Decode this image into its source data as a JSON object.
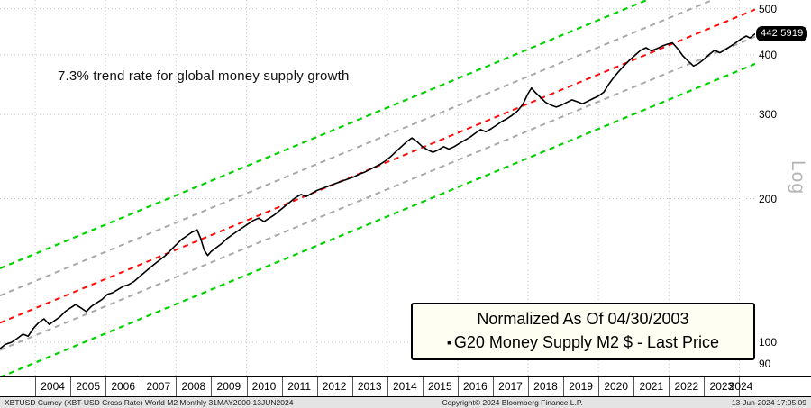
{
  "annotation": "7.3% trend rate for global money supply growth",
  "log_scale_label": "Log",
  "price_badge": "442.5919",
  "legend": {
    "line1": "Normalized As Of 04/30/2003",
    "bullet": "▪",
    "line2": "G20 Money Supply M2 $ - Last Price"
  },
  "footer": {
    "left": "XBTUSD Curncy (XBT-USD Cross Rate) World M2  Monthly 31MAY2000-13JUN2024",
    "center": "Copyright© 2024 Bloomberg Finance L.P.",
    "right": "13-Jun-2024 17:05:09"
  },
  "colors": {
    "price_line": "#000000",
    "trend_center": "#ff0a0a",
    "trend_inner": "#a8a8a8",
    "trend_outer": "#00d200",
    "gridline": "#c9c9c9",
    "badge_bg": "#000000",
    "badge_text": "#ffffff"
  },
  "chart_data": {
    "type": "line",
    "title": "",
    "scale_y": "log",
    "normalized_as_of": "04/30/2003",
    "x_range": [
      2003.0,
      2024.45
    ],
    "ylim": [
      84.8,
      521.2
    ],
    "y_ticks": [
      500,
      400,
      300,
      200,
      100,
      90
    ],
    "h_gridlines": [
      500,
      400,
      300,
      200,
      100
    ],
    "v_gridline_years": [
      2004,
      2006,
      2008,
      2010,
      2012,
      2014,
      2016,
      2018,
      2020,
      2022,
      2024
    ],
    "x_tick_years": [
      2004,
      2005,
      2006,
      2007,
      2008,
      2009,
      2010,
      2011,
      2012,
      2013,
      2014,
      2015,
      2016,
      2017,
      2018,
      2019,
      2020,
      2021,
      2022,
      2023,
      2024
    ],
    "last_price": 442.5919,
    "trend_channel": {
      "annual_growth_pct": 7.3,
      "anchor_year": 2003.4,
      "anchor_value": 113,
      "inner_band_factor": 1.14,
      "outer_band_factor": 1.3,
      "center_color": "#ff0a0a",
      "inner_color": "#a8a8a8",
      "outer_color": "#00d200",
      "dash": "6 5"
    },
    "series": [
      {
        "name": "G20 Money Supply M2 $ - Last Price",
        "color": "#000000",
        "points": [
          [
            2003.0,
            97
          ],
          [
            2003.15,
            99
          ],
          [
            2003.33,
            100
          ],
          [
            2003.5,
            102
          ],
          [
            2003.65,
            104
          ],
          [
            2003.8,
            103
          ],
          [
            2003.95,
            107
          ],
          [
            2004.1,
            110
          ],
          [
            2004.25,
            112
          ],
          [
            2004.4,
            109
          ],
          [
            2004.55,
            111
          ],
          [
            2004.7,
            113
          ],
          [
            2004.85,
            116
          ],
          [
            2005.0,
            118
          ],
          [
            2005.15,
            120
          ],
          [
            2005.3,
            118
          ],
          [
            2005.45,
            116
          ],
          [
            2005.6,
            119
          ],
          [
            2005.75,
            121
          ],
          [
            2005.9,
            123
          ],
          [
            2006.05,
            126
          ],
          [
            2006.2,
            127
          ],
          [
            2006.35,
            129
          ],
          [
            2006.5,
            131
          ],
          [
            2006.65,
            132
          ],
          [
            2006.8,
            134
          ],
          [
            2006.95,
            137
          ],
          [
            2007.1,
            140
          ],
          [
            2007.25,
            143
          ],
          [
            2007.4,
            146
          ],
          [
            2007.55,
            149
          ],
          [
            2007.7,
            152
          ],
          [
            2007.85,
            156
          ],
          [
            2008.0,
            160
          ],
          [
            2008.15,
            164
          ],
          [
            2008.3,
            167
          ],
          [
            2008.45,
            170
          ],
          [
            2008.6,
            172
          ],
          [
            2008.7,
            165
          ],
          [
            2008.8,
            156
          ],
          [
            2008.9,
            152
          ],
          [
            2009.0,
            155
          ],
          [
            2009.15,
            158
          ],
          [
            2009.3,
            161
          ],
          [
            2009.45,
            165
          ],
          [
            2009.6,
            168
          ],
          [
            2009.75,
            171
          ],
          [
            2009.9,
            174
          ],
          [
            2010.05,
            177
          ],
          [
            2010.2,
            180
          ],
          [
            2010.35,
            182
          ],
          [
            2010.5,
            179
          ],
          [
            2010.65,
            182
          ],
          [
            2010.8,
            185
          ],
          [
            2010.95,
            189
          ],
          [
            2011.1,
            193
          ],
          [
            2011.25,
            197
          ],
          [
            2011.4,
            201
          ],
          [
            2011.55,
            204
          ],
          [
            2011.7,
            202
          ],
          [
            2011.85,
            205
          ],
          [
            2012.0,
            208
          ],
          [
            2012.15,
            210
          ],
          [
            2012.3,
            212
          ],
          [
            2012.45,
            214
          ],
          [
            2012.6,
            216
          ],
          [
            2012.75,
            218
          ],
          [
            2012.9,
            220
          ],
          [
            2013.05,
            222
          ],
          [
            2013.2,
            225
          ],
          [
            2013.35,
            227
          ],
          [
            2013.5,
            230
          ],
          [
            2013.65,
            233
          ],
          [
            2013.8,
            236
          ],
          [
            2013.95,
            240
          ],
          [
            2014.1,
            245
          ],
          [
            2014.25,
            251
          ],
          [
            2014.4,
            257
          ],
          [
            2014.55,
            263
          ],
          [
            2014.7,
            268
          ],
          [
            2014.85,
            263
          ],
          [
            2015.0,
            257
          ],
          [
            2015.15,
            253
          ],
          [
            2015.3,
            250
          ],
          [
            2015.45,
            253
          ],
          [
            2015.6,
            257
          ],
          [
            2015.75,
            254
          ],
          [
            2015.9,
            257
          ],
          [
            2016.05,
            261
          ],
          [
            2016.2,
            265
          ],
          [
            2016.35,
            269
          ],
          [
            2016.5,
            274
          ],
          [
            2016.65,
            279
          ],
          [
            2016.8,
            276
          ],
          [
            2016.95,
            280
          ],
          [
            2017.1,
            285
          ],
          [
            2017.25,
            290
          ],
          [
            2017.4,
            294
          ],
          [
            2017.55,
            299
          ],
          [
            2017.7,
            305
          ],
          [
            2017.85,
            315
          ],
          [
            2018.0,
            332
          ],
          [
            2018.1,
            341
          ],
          [
            2018.2,
            334
          ],
          [
            2018.35,
            326
          ],
          [
            2018.5,
            318
          ],
          [
            2018.65,
            314
          ],
          [
            2018.8,
            311
          ],
          [
            2018.95,
            314
          ],
          [
            2019.1,
            318
          ],
          [
            2019.25,
            322
          ],
          [
            2019.4,
            319
          ],
          [
            2019.55,
            316
          ],
          [
            2019.7,
            320
          ],
          [
            2019.85,
            324
          ],
          [
            2020.0,
            328
          ],
          [
            2020.15,
            334
          ],
          [
            2020.3,
            348
          ],
          [
            2020.45,
            360
          ],
          [
            2020.6,
            371
          ],
          [
            2020.75,
            381
          ],
          [
            2020.9,
            391
          ],
          [
            2021.05,
            400
          ],
          [
            2021.2,
            409
          ],
          [
            2021.35,
            414
          ],
          [
            2021.5,
            408
          ],
          [
            2021.65,
            412
          ],
          [
            2021.8,
            417
          ],
          [
            2021.95,
            421
          ],
          [
            2022.1,
            424
          ],
          [
            2022.25,
            412
          ],
          [
            2022.4,
            398
          ],
          [
            2022.55,
            388
          ],
          [
            2022.7,
            379
          ],
          [
            2022.85,
            384
          ],
          [
            2023.0,
            392
          ],
          [
            2023.15,
            401
          ],
          [
            2023.3,
            409
          ],
          [
            2023.45,
            404
          ],
          [
            2023.6,
            410
          ],
          [
            2023.75,
            417
          ],
          [
            2023.9,
            424
          ],
          [
            2024.05,
            432
          ],
          [
            2024.2,
            438
          ],
          [
            2024.3,
            434
          ],
          [
            2024.45,
            442.59
          ]
        ]
      }
    ]
  }
}
